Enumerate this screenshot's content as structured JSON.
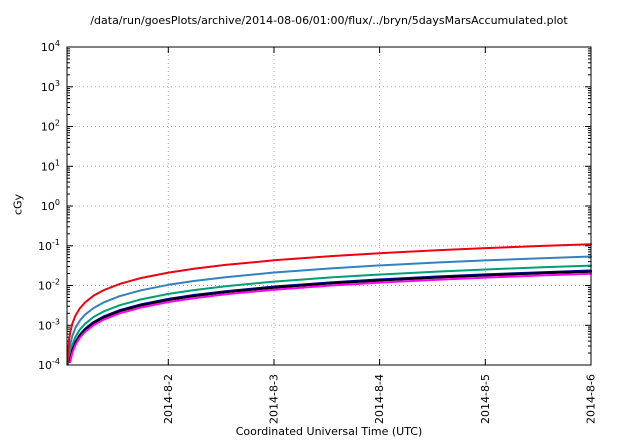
{
  "chart_data": {
    "type": "line",
    "title": "/data/run/goesPlots/archive/2014-08-06/01:00/flux/../bryn/5daysMarsAccumulated.plot",
    "xlabel": "Coordinated Universal Time (UTC)",
    "ylabel": "cGy",
    "y_scale": "log",
    "ylim": [
      0.0001,
      10000
    ],
    "xlim_days": [
      0,
      4.9583
    ],
    "grid": true,
    "legend": "none",
    "y_tick_exponents": [
      4,
      3,
      2,
      1,
      0,
      -1,
      -2,
      -3,
      -4
    ],
    "x_ticks": [
      {
        "t": 0.9583,
        "label": "2014-8-2"
      },
      {
        "t": 1.9583,
        "label": "2014-8-3"
      },
      {
        "t": 2.9583,
        "label": "2014-8-4"
      },
      {
        "t": 3.9583,
        "label": "2014-8-5"
      },
      {
        "t": 4.9583,
        "label": "2014-8-6"
      }
    ],
    "series": [
      {
        "name": "accumulated-dose-blue",
        "color": "#3282be",
        "points": [
          [
            0.01,
            0.000108
          ],
          [
            0.02,
            0.000216
          ],
          [
            0.03,
            0.000324
          ],
          [
            0.05,
            0.00054
          ],
          [
            0.08,
            0.000864
          ],
          [
            0.12,
            0.0013
          ],
          [
            0.17,
            0.00184
          ],
          [
            0.25,
            0.0027
          ],
          [
            0.35,
            0.00378
          ],
          [
            0.5,
            0.0054
          ],
          [
            0.7,
            0.00756
          ],
          [
            0.96,
            0.0104
          ],
          [
            1.2,
            0.013
          ],
          [
            1.5,
            0.0162
          ],
          [
            1.96,
            0.0212
          ],
          [
            2.5,
            0.027
          ],
          [
            2.96,
            0.032
          ],
          [
            3.5,
            0.0378
          ],
          [
            3.96,
            0.0428
          ],
          [
            4.5,
            0.0486
          ],
          [
            4.9583,
            0.0535
          ]
        ]
      },
      {
        "name": "accumulated-dose-teal",
        "color": "#009e73",
        "points": [
          [
            0.02,
            0.000128
          ],
          [
            0.03,
            0.000192
          ],
          [
            0.05,
            0.00032
          ],
          [
            0.08,
            0.000512
          ],
          [
            0.12,
            0.000768
          ],
          [
            0.17,
            0.00109
          ],
          [
            0.25,
            0.0016
          ],
          [
            0.35,
            0.00224
          ],
          [
            0.5,
            0.0032
          ],
          [
            0.7,
            0.00448
          ],
          [
            0.96,
            0.00614
          ],
          [
            1.2,
            0.00768
          ],
          [
            1.5,
            0.0096
          ],
          [
            1.96,
            0.0125
          ],
          [
            2.5,
            0.016
          ],
          [
            2.96,
            0.0189
          ],
          [
            3.5,
            0.0224
          ],
          [
            3.96,
            0.0253
          ],
          [
            4.5,
            0.0288
          ],
          [
            4.9583,
            0.0317
          ]
        ]
      },
      {
        "name": "accumulated-dose-navy",
        "color": "#00008b",
        "points": [
          [
            0.025,
            0.00012
          ],
          [
            0.03,
            0.000144
          ],
          [
            0.05,
            0.00024
          ],
          [
            0.08,
            0.000384
          ],
          [
            0.12,
            0.000576
          ],
          [
            0.17,
            0.000816
          ],
          [
            0.25,
            0.0012
          ],
          [
            0.35,
            0.00168
          ],
          [
            0.5,
            0.0024
          ],
          [
            0.7,
            0.00336
          ],
          [
            0.96,
            0.00461
          ],
          [
            1.2,
            0.00576
          ],
          [
            1.5,
            0.0072
          ],
          [
            1.96,
            0.00941
          ],
          [
            2.5,
            0.012
          ],
          [
            2.96,
            0.0142
          ],
          [
            3.5,
            0.0168
          ],
          [
            3.96,
            0.019
          ],
          [
            4.5,
            0.0216
          ],
          [
            4.9583,
            0.0238
          ]
        ]
      },
      {
        "name": "accumulated-dose-black",
        "color": "#000000",
        "points": [
          [
            0.027,
            0.00012
          ],
          [
            0.03,
            0.000135
          ],
          [
            0.05,
            0.000225
          ],
          [
            0.08,
            0.00036
          ],
          [
            0.12,
            0.00054
          ],
          [
            0.17,
            0.000765
          ],
          [
            0.25,
            0.00113
          ],
          [
            0.35,
            0.00158
          ],
          [
            0.5,
            0.00225
          ],
          [
            0.7,
            0.00315
          ],
          [
            0.96,
            0.00432
          ],
          [
            1.2,
            0.0054
          ],
          [
            1.5,
            0.00675
          ],
          [
            1.96,
            0.00882
          ],
          [
            2.5,
            0.0113
          ],
          [
            2.96,
            0.0133
          ],
          [
            3.5,
            0.0158
          ],
          [
            3.96,
            0.0178
          ],
          [
            4.5,
            0.0203
          ],
          [
            4.9583,
            0.0223
          ]
        ]
      },
      {
        "name": "accumulated-dose-magenta",
        "color": "#ff00ff",
        "points": [
          [
            0.03,
            0.00012
          ],
          [
            0.05,
            0.0002
          ],
          [
            0.08,
            0.00032
          ],
          [
            0.12,
            0.00048
          ],
          [
            0.17,
            0.00068
          ],
          [
            0.25,
            0.001
          ],
          [
            0.35,
            0.0014
          ],
          [
            0.5,
            0.002
          ],
          [
            0.7,
            0.0028
          ],
          [
            0.96,
            0.00384
          ],
          [
            1.2,
            0.0048
          ],
          [
            1.5,
            0.006
          ],
          [
            1.96,
            0.00784
          ],
          [
            2.5,
            0.01
          ],
          [
            2.96,
            0.0118
          ],
          [
            3.5,
            0.014
          ],
          [
            3.96,
            0.0158
          ],
          [
            4.5,
            0.018
          ],
          [
            4.9583,
            0.0198
          ]
        ]
      },
      {
        "name": "accumulated-dose-red",
        "color": "#ee0011",
        "points": [
          [
            0.005,
            0.00011
          ],
          [
            0.01,
            0.00022
          ],
          [
            0.02,
            0.00044
          ],
          [
            0.03,
            0.00066
          ],
          [
            0.05,
            0.0011
          ],
          [
            0.08,
            0.00176
          ],
          [
            0.12,
            0.00264
          ],
          [
            0.17,
            0.00374
          ],
          [
            0.25,
            0.0055
          ],
          [
            0.35,
            0.0077
          ],
          [
            0.5,
            0.011
          ],
          [
            0.7,
            0.0154
          ],
          [
            0.96,
            0.0211
          ],
          [
            1.2,
            0.0264
          ],
          [
            1.5,
            0.033
          ],
          [
            1.96,
            0.0431
          ],
          [
            2.5,
            0.055
          ],
          [
            2.96,
            0.0651
          ],
          [
            3.5,
            0.077
          ],
          [
            3.96,
            0.0871
          ],
          [
            4.5,
            0.099
          ],
          [
            4.9583,
            0.1091
          ]
        ]
      }
    ]
  }
}
